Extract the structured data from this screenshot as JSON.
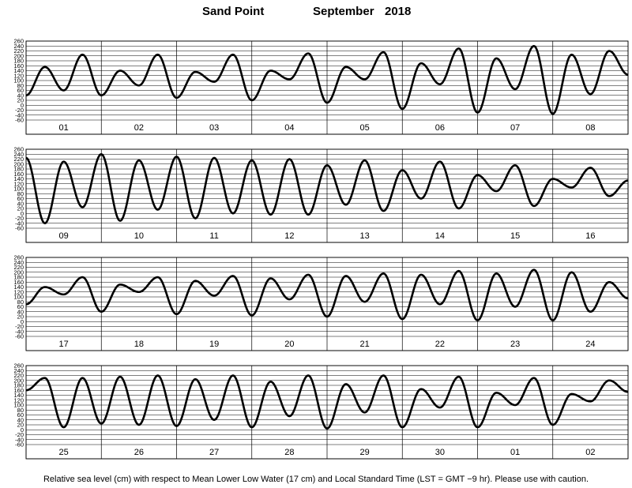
{
  "header": {
    "station": "Sand Point",
    "month": "September",
    "year": "2018"
  },
  "footnote": "Relative sea level (cm) with respect to Mean Lower Low Water (17 cm) and Local Standard Time (LST = GMT −9 hr). Please use with caution.",
  "chart_data": [
    {
      "type": "line",
      "x_label": "day",
      "ylim": [
        -60,
        260
      ],
      "yticks": [
        260,
        240,
        220,
        200,
        180,
        160,
        140,
        120,
        100,
        80,
        60,
        40,
        20,
        0,
        -20,
        -40,
        -60
      ],
      "day_labels": [
        "01",
        "02",
        "03",
        "04",
        "05",
        "06",
        "07",
        "08"
      ],
      "series": [
        {
          "values": [
            40,
            155,
            60,
            205,
            40,
            140,
            80,
            205,
            30,
            135,
            95,
            205,
            20,
            140,
            105,
            210,
            10,
            155,
            105,
            215,
            -15,
            170,
            85,
            230,
            -30,
            190,
            65,
            240,
            -35,
            205,
            45,
            220
          ]
        }
      ]
    },
    {
      "type": "line",
      "x_label": "day",
      "ylim": [
        -60,
        260
      ],
      "yticks": [
        260,
        240,
        220,
        200,
        180,
        160,
        140,
        120,
        100,
        80,
        60,
        40,
        20,
        0,
        -20,
        -40,
        -60
      ],
      "day_labels": [
        "09",
        "10",
        "11",
        "12",
        "13",
        "14",
        "15",
        "16"
      ],
      "series": [
        {
          "values": [
            225,
            -40,
            210,
            25,
            240,
            -30,
            215,
            15,
            230,
            -20,
            225,
            0,
            215,
            -5,
            220,
            -5,
            195,
            35,
            215,
            10,
            175,
            60,
            210,
            20,
            155,
            90,
            195,
            30,
            140,
            105,
            185,
            70
          ]
        }
      ]
    },
    {
      "type": "line",
      "x_label": "day",
      "ylim": [
        -60,
        260
      ],
      "yticks": [
        260,
        240,
        220,
        200,
        180,
        160,
        140,
        120,
        100,
        80,
        60,
        40,
        20,
        0,
        -20,
        -40,
        -60
      ],
      "day_labels": [
        "17",
        "18",
        "19",
        "20",
        "21",
        "22",
        "23",
        "24"
      ],
      "series": [
        {
          "values": [
            70,
            140,
            110,
            180,
            40,
            150,
            120,
            180,
            30,
            165,
            105,
            185,
            25,
            175,
            90,
            190,
            20,
            185,
            80,
            195,
            10,
            190,
            70,
            205,
            5,
            195,
            60,
            210,
            5,
            200,
            40,
            160
          ]
        }
      ]
    },
    {
      "type": "line",
      "x_label": "day",
      "ylim": [
        -60,
        260
      ],
      "yticks": [
        260,
        240,
        220,
        200,
        180,
        160,
        140,
        120,
        100,
        80,
        60,
        40,
        20,
        0,
        -20,
        -40,
        -60
      ],
      "day_labels": [
        "25",
        "26",
        "27",
        "28",
        "29",
        "30",
        "01",
        "02"
      ],
      "series": [
        {
          "values": [
            160,
            210,
            10,
            210,
            25,
            215,
            20,
            220,
            15,
            205,
            40,
            220,
            10,
            195,
            55,
            220,
            5,
            185,
            70,
            220,
            10,
            165,
            90,
            215,
            10,
            150,
            100,
            210,
            20,
            145,
            115,
            200
          ]
        }
      ]
    }
  ]
}
